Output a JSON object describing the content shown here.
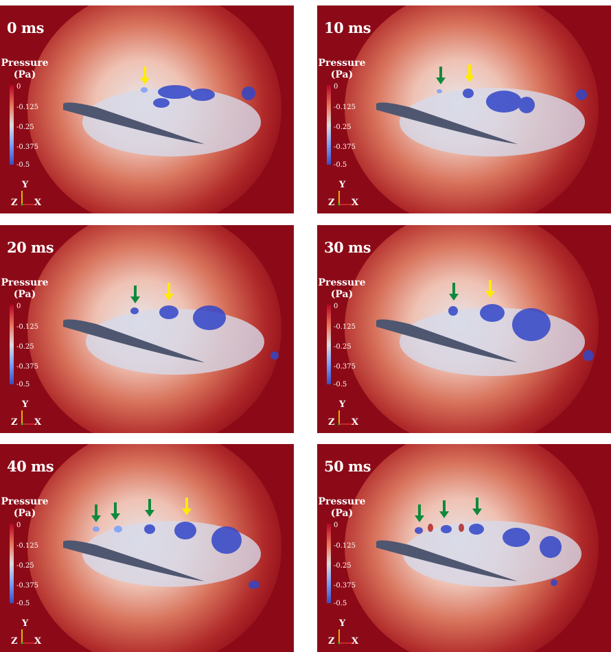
{
  "legend": {
    "title_line1": "Pressure",
    "title_line2": "(Pa)",
    "ticks": [
      "0",
      "-0.125",
      "-0.25",
      "-0.375",
      "-0.5"
    ]
  },
  "axes": {
    "y": "Y",
    "z": "Z",
    "x": "X"
  },
  "colors": {
    "background_red": "#8c0a17",
    "airfoil": "#4f5670",
    "vortex_blue": "#3246c8",
    "arrow_yellow": "#ffeb00",
    "arrow_green": "#0f8a3c"
  },
  "panels": [
    {
      "time": "0 ms",
      "green_arrows": 0,
      "yellow_arrows": 1
    },
    {
      "time": "10 ms",
      "green_arrows": 1,
      "yellow_arrows": 1
    },
    {
      "time": "20 ms",
      "green_arrows": 1,
      "yellow_arrows": 1
    },
    {
      "time": "30 ms",
      "green_arrows": 1,
      "yellow_arrows": 1
    },
    {
      "time": "40 ms",
      "green_arrows": 3,
      "yellow_arrows": 1
    },
    {
      "time": "50 ms",
      "green_arrows": 3,
      "yellow_arrows": 0
    }
  ]
}
